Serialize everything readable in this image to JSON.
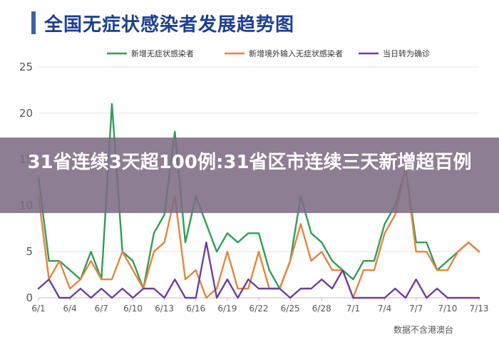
{
  "chart_data": {
    "type": "line",
    "title": "全国无症状感染者发展趋势图",
    "categories": [
      "6/1",
      "6/2",
      "6/3",
      "6/4",
      "6/5",
      "6/6",
      "6/7",
      "6/8",
      "6/9",
      "6/10",
      "6/11",
      "6/12",
      "6/13",
      "6/14",
      "6/15",
      "6/16",
      "6/17",
      "6/18",
      "6/19",
      "6/20",
      "6/21",
      "6/22",
      "6/23",
      "6/24",
      "6/25",
      "6/26",
      "6/27",
      "6/28",
      "6/29",
      "6/30",
      "7/1",
      "7/2",
      "7/3",
      "7/4",
      "7/5",
      "7/6",
      "7/7",
      "7/8",
      "7/9",
      "7/10",
      "7/11",
      "7/12",
      "7/13"
    ],
    "tick_labels": [
      "6/1",
      "6/4",
      "6/7",
      "6/10",
      "6/13",
      "6/16",
      "6/19",
      "6/22",
      "6/25",
      "6/28",
      "7/1",
      "7/4",
      "7/7",
      "7/10",
      "7/13"
    ],
    "ylim": [
      0,
      25
    ],
    "yticks": [
      0,
      5,
      10,
      15,
      20,
      25
    ],
    "grid": true,
    "legend_position": "top",
    "series": [
      {
        "name": "新增无症状感染者",
        "color": "#2e9e58",
        "values": [
          13,
          4,
          4,
          3,
          2,
          5,
          2,
          21,
          5,
          4,
          1,
          7,
          9,
          18,
          6,
          11,
          8,
          5,
          7,
          6,
          7,
          7,
          3,
          1,
          4,
          11,
          7,
          6,
          4,
          3,
          2,
          4,
          4,
          8,
          10,
          14,
          6,
          6,
          3,
          4,
          5,
          6,
          5
        ]
      },
      {
        "name": "新增境外输入无症状感染者",
        "color": "#e8843c",
        "values": [
          11,
          2,
          4,
          1,
          2,
          4,
          2,
          2,
          5,
          3,
          1,
          5,
          6,
          11,
          2,
          3,
          0,
          1,
          5,
          1,
          1,
          5,
          1,
          1,
          4,
          8,
          4,
          5,
          3,
          3,
          0,
          3,
          3,
          7,
          9,
          14,
          5,
          5,
          3,
          3,
          5,
          6,
          5
        ]
      },
      {
        "name": "当日转为确诊",
        "color": "#6c3f9c",
        "values": [
          1,
          2,
          0,
          0,
          1,
          0,
          1,
          0,
          1,
          0,
          1,
          1,
          0,
          2,
          0,
          0,
          6,
          0,
          2,
          0,
          2,
          1,
          1,
          1,
          0,
          1,
          1,
          2,
          1,
          3,
          0,
          0,
          0,
          0,
          1,
          0,
          2,
          0,
          1,
          0,
          0,
          0,
          0
        ]
      }
    ]
  },
  "overlay": {
    "headline": "31省连续3天超100例:31省区市连续三天新增超百例"
  },
  "source": "数据不含港澳台"
}
